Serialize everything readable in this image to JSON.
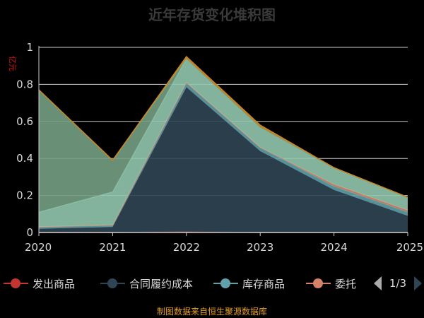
{
  "chart_data": {
    "type": "area",
    "stacked": true,
    "title": "近年存货变化堆积图",
    "unit": "亿元",
    "x": [
      "2020",
      "2021",
      "2022",
      "2023",
      "2024",
      "2025"
    ],
    "ylim": [
      0,
      1
    ],
    "yticks": [
      "0",
      "0.2",
      "0.4",
      "0.6",
      "0.8",
      "1"
    ],
    "grid": true,
    "series": [
      {
        "name": "发出商品",
        "color": "#c23531",
        "values": [
          0,
          0,
          0.005,
          0,
          0,
          0
        ]
      },
      {
        "name": "合同履约成本",
        "color": "#2f4554",
        "values": [
          0.02,
          0.03,
          0.78,
          0.44,
          0.23,
          0.09
        ]
      },
      {
        "name": "库存商品",
        "color": "#61a0a8",
        "values": [
          0.01,
          0.01,
          0.025,
          0.02,
          0.02,
          0.02
        ]
      },
      {
        "name": "委托加工物资",
        "color": "#d48265",
        "values": [
          0,
          0,
          0,
          0,
          0.01,
          0.01
        ]
      },
      {
        "name": "",
        "color": "#91c7ae",
        "values": [
          0.08,
          0.18,
          0.13,
          0.11,
          0.09,
          0.07
        ]
      },
      {
        "name": "",
        "color": "#749f83",
        "values": [
          0.66,
          0.17,
          0.0,
          0.0,
          0.0,
          0.0
        ]
      },
      {
        "name": "",
        "color": "#ca8622",
        "values": [
          0.0,
          0.0,
          0.01,
          0.01,
          0.0,
          0.0
        ]
      }
    ],
    "legend": {
      "placement": "bottom",
      "visible_items": [
        "发出商品",
        "合同履约成本",
        "库存商品",
        "委托"
      ],
      "page": "1/3"
    }
  },
  "source_note": "制图数据来自恒生聚源数据库"
}
